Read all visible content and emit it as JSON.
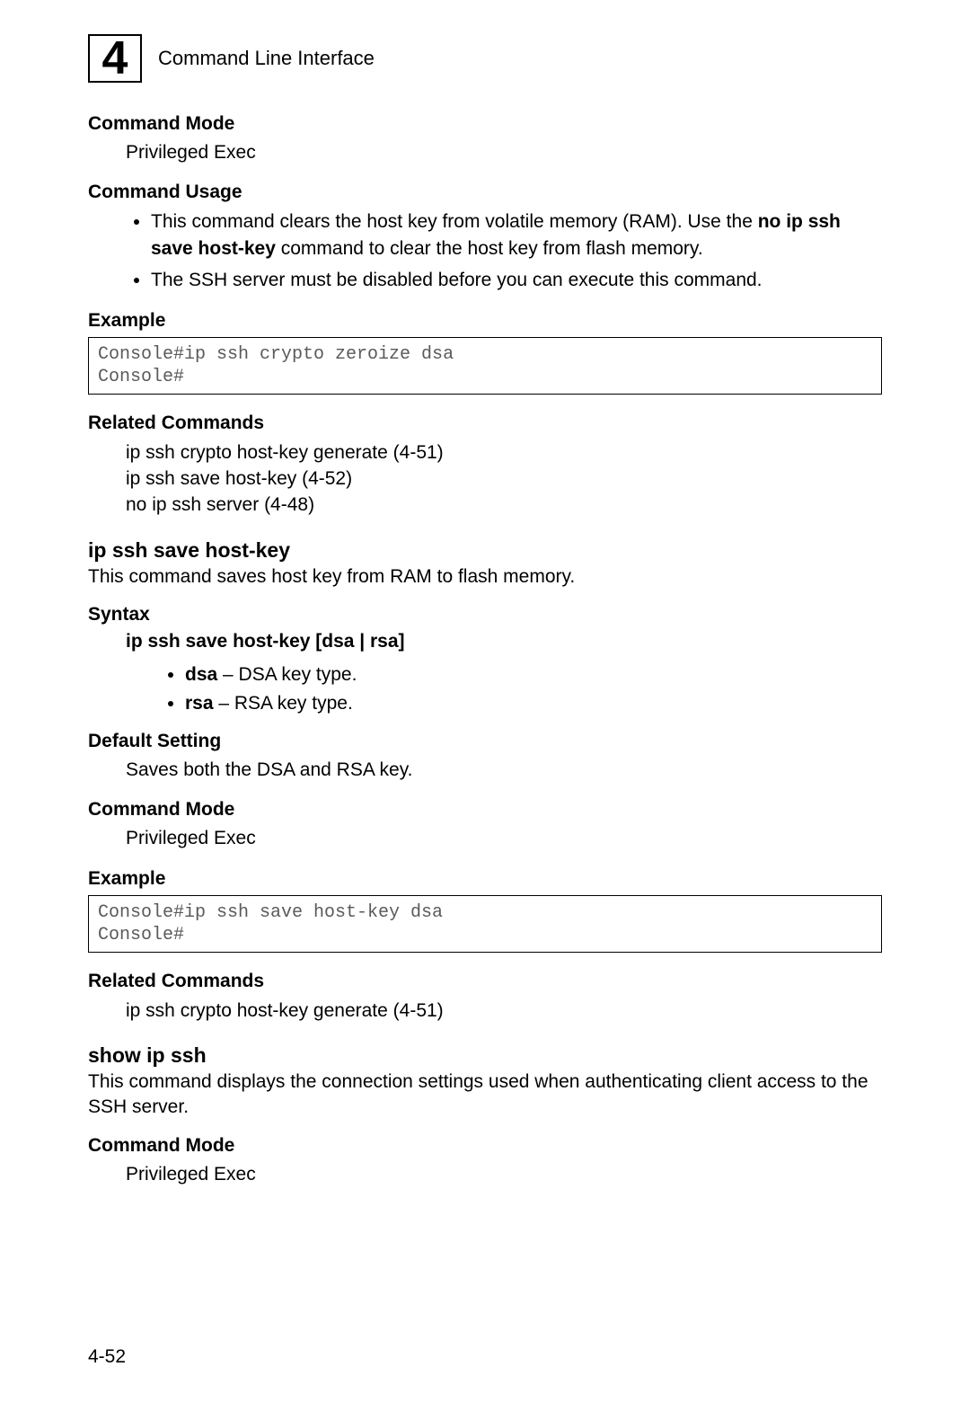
{
  "header": {
    "chapter_number": "4",
    "title": "Command Line Interface"
  },
  "blocks": {
    "cmd_mode_1": {
      "head": "Command Mode",
      "body": "Privileged Exec"
    },
    "cmd_usage": {
      "head": "Command Usage",
      "b1_pre": "This command clears the host key from volatile memory (RAM). Use the ",
      "b1_bold1": "no ip ssh save host-key",
      "b1_post": " command to clear the host key from flash memory.",
      "b2": "The SSH server must be disabled before you can execute this command."
    },
    "example_1": {
      "head": "Example",
      "code": "Console#ip ssh crypto zeroize dsa\nConsole#"
    },
    "related_1": {
      "head": "Related Commands",
      "l1": "ip ssh crypto host-key generate (4-51)",
      "l2": "ip ssh save host-key (4-52)",
      "l3": "no ip ssh server (4-48)"
    },
    "cmd2": {
      "title": "ip ssh save host-key",
      "desc": "This command saves host key from RAM to flash memory."
    },
    "syntax": {
      "head": "Syntax",
      "line_bold": "ip ssh save host-key",
      "line_rest": " [",
      "line_dsa": "dsa",
      "line_sep": " | ",
      "line_rsa": "rsa",
      "line_close": "]",
      "b1_bold": "dsa",
      "b1_rest": " – DSA key type.",
      "b2_bold": "rsa",
      "b2_rest": " – RSA key type."
    },
    "default_setting": {
      "head": "Default Setting",
      "body": "Saves both the DSA and RSA key."
    },
    "cmd_mode_2": {
      "head": "Command Mode",
      "body": "Privileged Exec"
    },
    "example_2": {
      "head": "Example",
      "code": "Console#ip ssh save host-key dsa\nConsole#"
    },
    "related_2": {
      "head": "Related Commands",
      "l1": "ip ssh crypto host-key generate (4-51)"
    },
    "cmd3": {
      "title": "show ip ssh",
      "desc": "This command displays the connection settings used when authenticating client access to the SSH server."
    },
    "cmd_mode_3": {
      "head": "Command Mode",
      "body": "Privileged Exec"
    }
  },
  "page_number": "4-52"
}
